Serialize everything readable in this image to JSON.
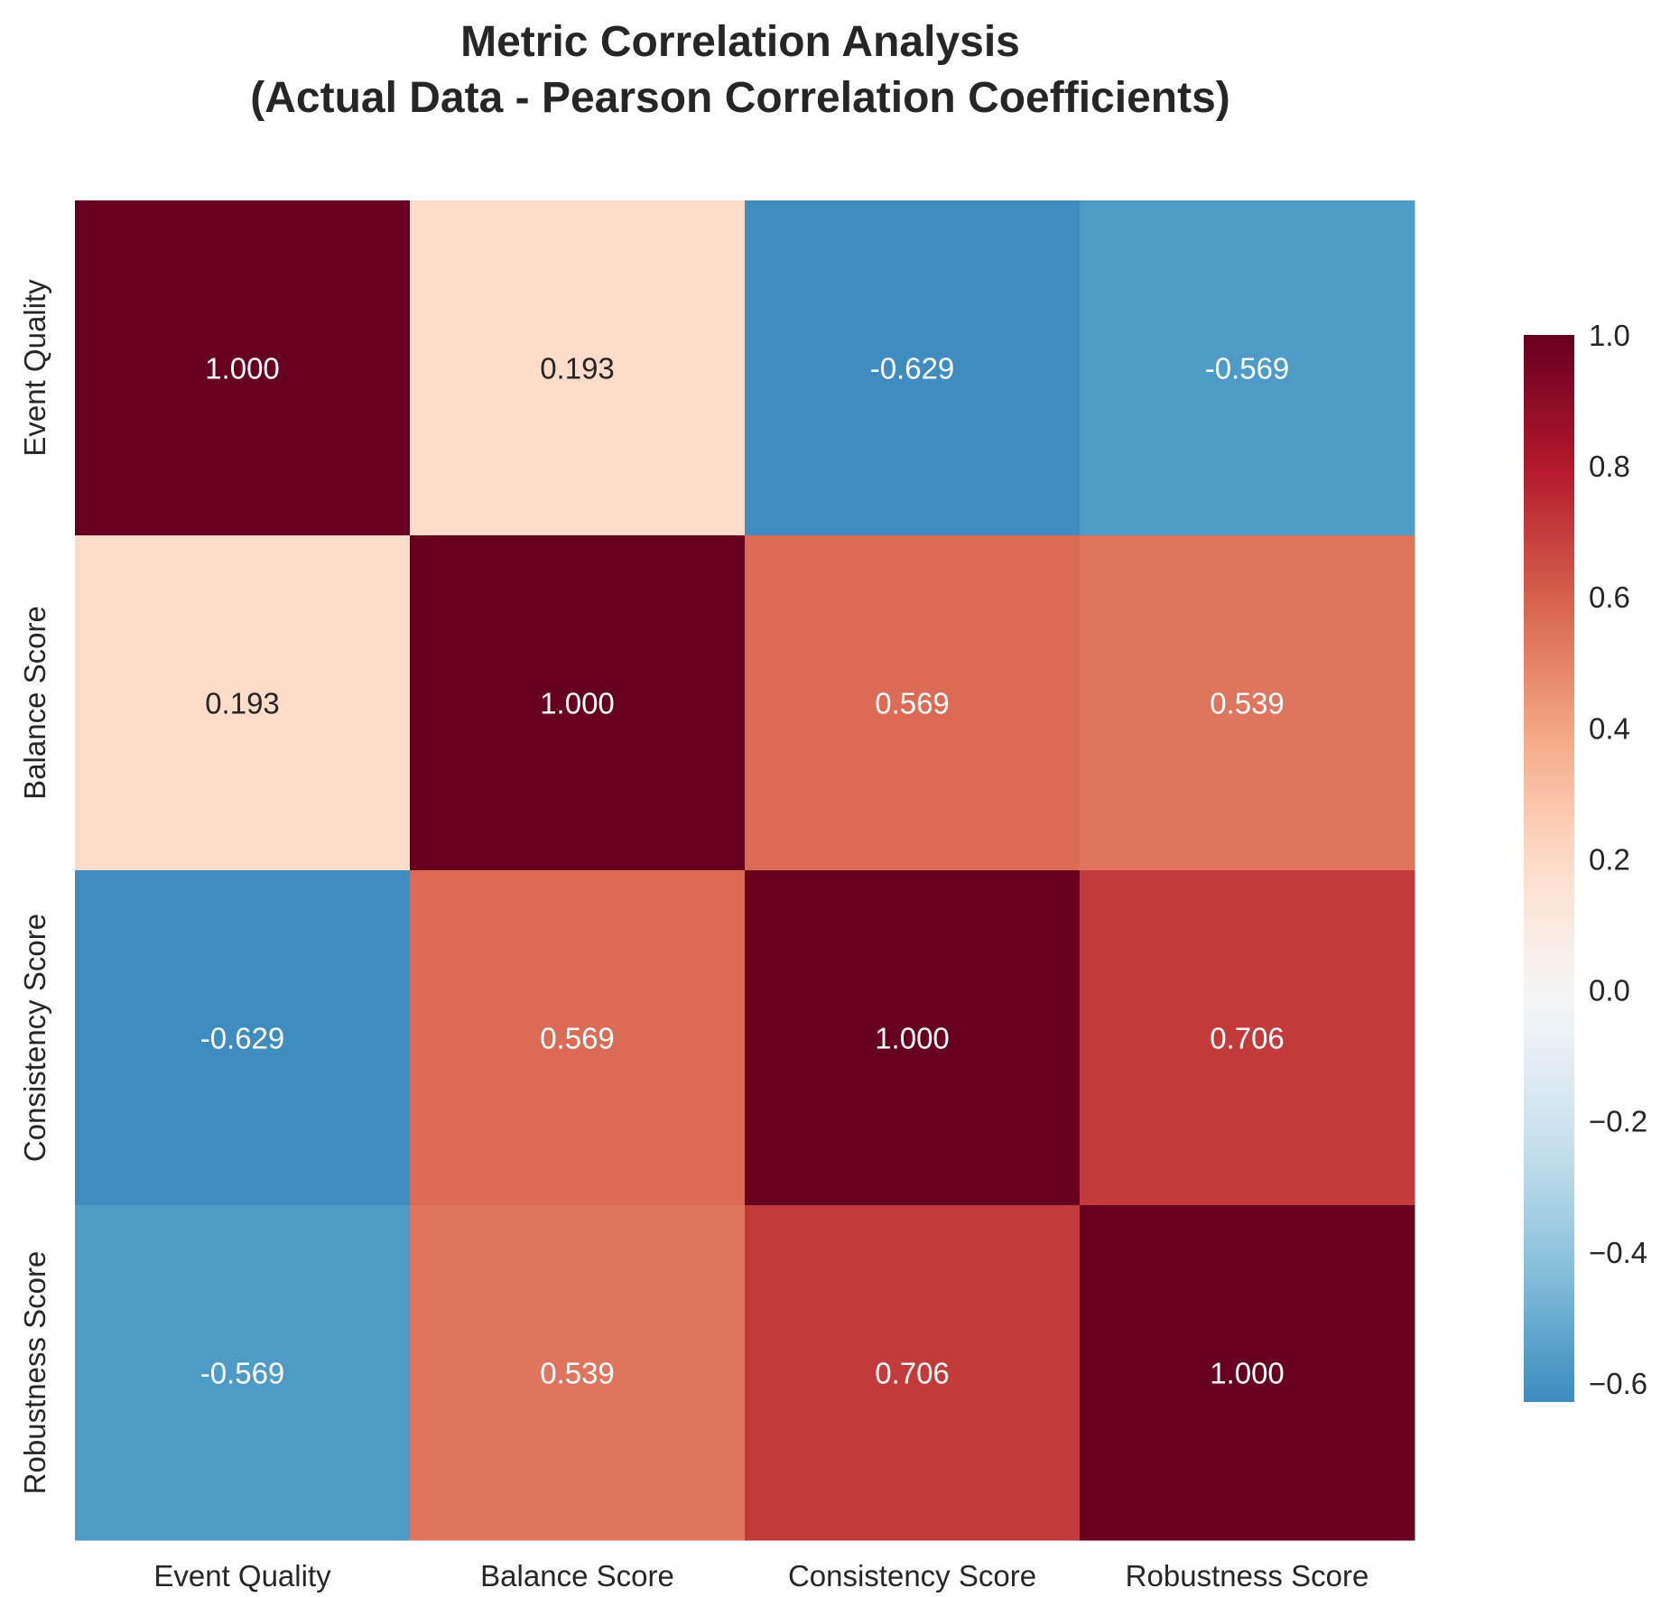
{
  "chart_data": {
    "type": "heatmap",
    "title_lines": [
      "Metric Correlation Analysis",
      "(Actual Data - Pearson Correlation Coefficients)"
    ],
    "row_labels": [
      "Event Quality",
      "Balance Score",
      "Consistency Score",
      "Robustness Score"
    ],
    "col_labels": [
      "Event Quality",
      "Balance Score",
      "Consistency Score",
      "Robustness Score"
    ],
    "values": [
      [
        1.0,
        0.193,
        -0.629,
        -0.569
      ],
      [
        0.193,
        1.0,
        0.569,
        0.539
      ],
      [
        -0.629,
        0.569,
        1.0,
        0.706
      ],
      [
        -0.569,
        0.539,
        0.706,
        1.0
      ]
    ],
    "value_format": "3 decimals",
    "colormap": "RdBu_r",
    "vmin": -1.0,
    "vmax": 1.0,
    "colorbar": {
      "range": [
        -0.629,
        1.0
      ],
      "ticks": [
        1.0,
        0.8,
        0.6,
        0.4,
        0.2,
        0.0,
        -0.2,
        -0.4,
        -0.6
      ],
      "tick_labels": [
        "1.0",
        "0.8",
        "0.6",
        "0.4",
        "0.2",
        "0.0",
        "−0.2",
        "−0.4",
        "−0.6"
      ],
      "placement": "right"
    },
    "grid": false
  }
}
